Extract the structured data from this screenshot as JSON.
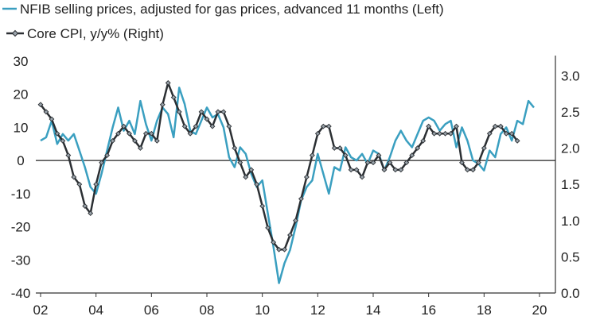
{
  "chart_data": {
    "type": "line",
    "title": "",
    "xlabel": "",
    "ylabel_left": "",
    "ylabel_right": "",
    "x_tick_labels": [
      "02",
      "04",
      "06",
      "08",
      "10",
      "12",
      "14",
      "16",
      "18",
      "20"
    ],
    "x_tick_years": [
      2002,
      2004,
      2006,
      2008,
      2010,
      2012,
      2014,
      2016,
      2018,
      2020
    ],
    "x_range": [
      2002.0,
      2020.0
    ],
    "left_axis": {
      "ylim": [
        -40,
        30
      ],
      "ticks": [
        30,
        20,
        10,
        0,
        -10,
        -20,
        -30,
        -40
      ]
    },
    "right_axis": {
      "ylim": [
        0.0,
        3.2
      ],
      "ticks": [
        "0.0",
        "0.5",
        "1.0",
        "1.5",
        "2.0",
        "2.5",
        "3.0"
      ]
    },
    "zero_line": {
      "axis": "left",
      "value": 0
    },
    "grid": false,
    "legend": {
      "placement": "top-left"
    },
    "series": [
      {
        "name": "NFIB selling prices, adjusted for gas prices, advanced 11 months (Left)",
        "axis": "left",
        "color": "#3a9fc0",
        "marker": "none",
        "x": [
          2002.0,
          2002.2,
          2002.4,
          2002.6,
          2002.8,
          2003.0,
          2003.2,
          2003.4,
          2003.6,
          2003.8,
          2004.0,
          2004.2,
          2004.4,
          2004.6,
          2004.8,
          2005.0,
          2005.2,
          2005.4,
          2005.6,
          2005.8,
          2006.0,
          2006.2,
          2006.4,
          2006.6,
          2006.8,
          2007.0,
          2007.2,
          2007.4,
          2007.6,
          2007.8,
          2008.0,
          2008.2,
          2008.4,
          2008.6,
          2008.8,
          2009.0,
          2009.2,
          2009.4,
          2009.6,
          2009.8,
          2010.0,
          2010.2,
          2010.4,
          2010.6,
          2010.8,
          2011.0,
          2011.2,
          2011.4,
          2011.6,
          2011.8,
          2012.0,
          2012.2,
          2012.4,
          2012.6,
          2012.8,
          2013.0,
          2013.2,
          2013.4,
          2013.6,
          2013.8,
          2014.0,
          2014.2,
          2014.4,
          2014.6,
          2014.8,
          2015.0,
          2015.2,
          2015.4,
          2015.6,
          2015.8,
          2016.0,
          2016.2,
          2016.4,
          2016.6,
          2016.8,
          2017.0,
          2017.2,
          2017.4,
          2017.6,
          2017.8,
          2018.0,
          2018.2,
          2018.4,
          2018.6,
          2018.8,
          2019.0,
          2019.2,
          2019.4,
          2019.6,
          2019.8
        ],
        "values": [
          6,
          7,
          12,
          5,
          8,
          6,
          8,
          3,
          -2,
          -8,
          -10,
          -4,
          3,
          10,
          16,
          9,
          12,
          8,
          18,
          11,
          6,
          12,
          16,
          14,
          7,
          22,
          17,
          9,
          8,
          12,
          16,
          13,
          14,
          10,
          1,
          -2,
          4,
          2,
          -4,
          -8,
          -6,
          -16,
          -26,
          -37,
          -31,
          -27,
          -20,
          -12,
          -8,
          -6,
          2,
          -4,
          -10,
          -2,
          -3,
          4,
          1,
          0,
          2,
          -1,
          3,
          2,
          -3,
          1,
          6,
          9,
          6,
          4,
          8,
          12,
          13,
          12,
          9,
          11,
          12,
          4,
          10,
          6,
          0,
          -1,
          -3,
          3,
          1,
          8,
          10,
          6,
          12,
          11,
          18,
          16
        ]
      },
      {
        "name": "Core CPI, y/y% (Right)",
        "axis": "right",
        "color": "#2b2f33",
        "marker": "diamond",
        "x": [
          2002.0,
          2002.2,
          2002.4,
          2002.6,
          2002.8,
          2003.0,
          2003.2,
          2003.4,
          2003.6,
          2003.8,
          2004.0,
          2004.2,
          2004.4,
          2004.6,
          2004.8,
          2005.0,
          2005.2,
          2005.4,
          2005.6,
          2005.8,
          2006.0,
          2006.2,
          2006.4,
          2006.6,
          2006.8,
          2007.0,
          2007.2,
          2007.4,
          2007.6,
          2007.8,
          2008.0,
          2008.2,
          2008.4,
          2008.6,
          2008.8,
          2009.0,
          2009.2,
          2009.4,
          2009.6,
          2009.8,
          2010.0,
          2010.2,
          2010.4,
          2010.6,
          2010.8,
          2011.0,
          2011.2,
          2011.4,
          2011.6,
          2011.8,
          2012.0,
          2012.2,
          2012.4,
          2012.6,
          2012.8,
          2013.0,
          2013.2,
          2013.4,
          2013.6,
          2013.8,
          2014.0,
          2014.2,
          2014.4,
          2014.6,
          2014.8,
          2015.0,
          2015.2,
          2015.4,
          2015.6,
          2015.8,
          2016.0,
          2016.2,
          2016.4,
          2016.6,
          2016.8,
          2017.0,
          2017.2,
          2017.4,
          2017.6,
          2017.8,
          2018.0,
          2018.2,
          2018.4,
          2018.6,
          2018.8,
          2019.0,
          2019.2
        ],
        "values": [
          2.6,
          2.5,
          2.4,
          2.2,
          2.1,
          1.9,
          1.6,
          1.5,
          1.2,
          1.1,
          1.5,
          1.8,
          1.9,
          2.1,
          2.2,
          2.3,
          2.2,
          2.1,
          2.0,
          2.2,
          2.2,
          2.1,
          2.6,
          2.9,
          2.7,
          2.5,
          2.3,
          2.2,
          2.3,
          2.5,
          2.4,
          2.3,
          2.5,
          2.5,
          2.3,
          2.0,
          1.8,
          1.6,
          1.7,
          1.5,
          1.2,
          0.9,
          0.7,
          0.6,
          0.6,
          0.8,
          1.0,
          1.3,
          1.6,
          1.9,
          2.2,
          2.3,
          2.3,
          2.0,
          2.0,
          1.9,
          1.7,
          1.7,
          1.6,
          1.8,
          1.8,
          1.9,
          1.7,
          1.8,
          1.7,
          1.7,
          1.8,
          1.9,
          2.0,
          2.1,
          2.3,
          2.2,
          2.2,
          2.2,
          2.2,
          2.3,
          1.8,
          1.7,
          1.7,
          1.8,
          2.0,
          2.2,
          2.3,
          2.3,
          2.2,
          2.2,
          2.1
        ]
      }
    ]
  }
}
